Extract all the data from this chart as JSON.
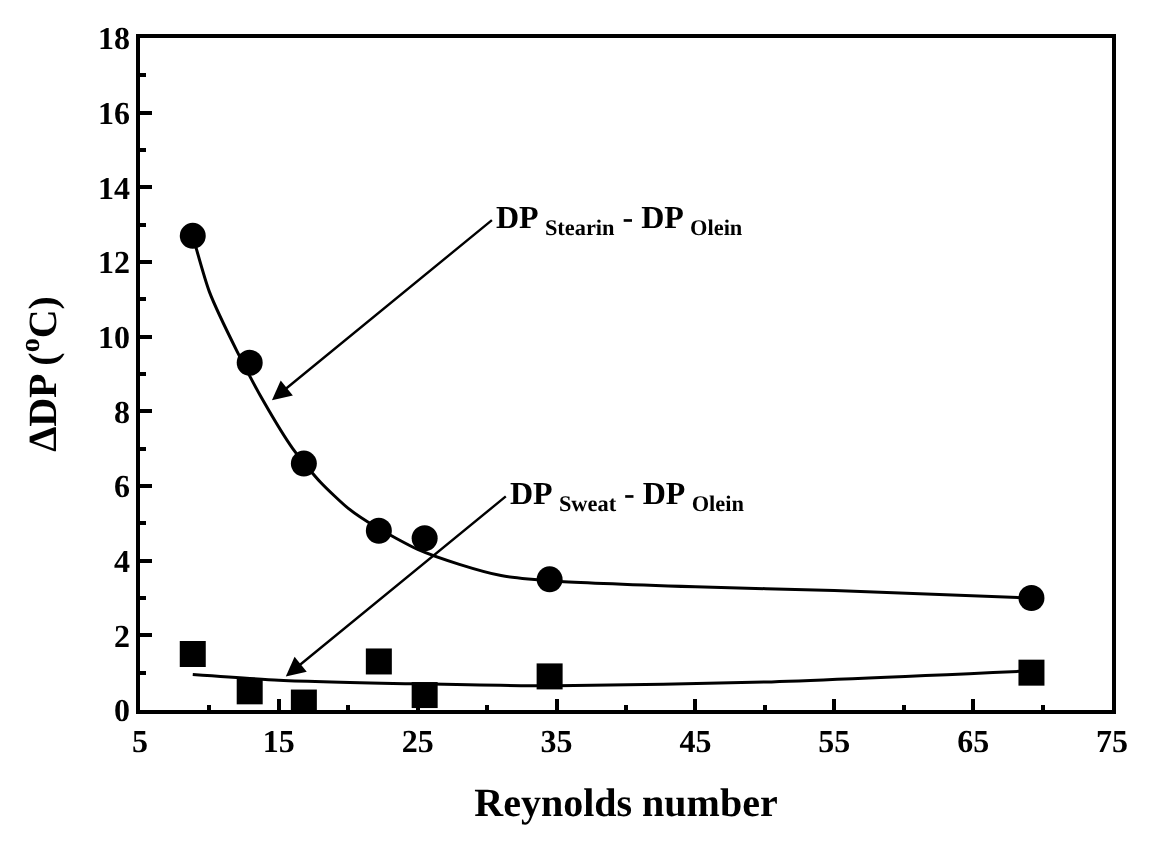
{
  "chart_data": {
    "type": "scatter",
    "xlabel": "Reynolds number",
    "ylabel": "ΔDP ($^{o}$C)",
    "xlim": [
      5,
      75
    ],
    "xticks": [
      5,
      15,
      25,
      35,
      45,
      55,
      65,
      75
    ],
    "ylim": [
      0,
      18
    ],
    "yticks": [
      0,
      2,
      4,
      6,
      8,
      10,
      12,
      14,
      16,
      18
    ],
    "series": [
      {
        "marker": "circle",
        "color": "#000000",
        "x": [
          8.8,
          12.9,
          16.8,
          22.2,
          25.5,
          34.5,
          69.2
        ],
        "values": [
          12.7,
          9.3,
          6.6,
          4.8,
          4.6,
          3.5,
          3.0
        ]
      },
      {
        "marker": "square",
        "color": "#000000",
        "x": [
          8.8,
          12.9,
          16.8,
          22.2,
          25.5,
          34.5,
          69.2
        ],
        "values": [
          1.5,
          0.5,
          0.2,
          1.3,
          0.4,
          0.9,
          1.0
        ]
      },
      {
        "type": "line",
        "marker": "none",
        "line_style": "solid",
        "color": "#000000",
        "x": [
          8.8,
          10,
          12,
          14,
          16,
          18,
          20,
          22,
          25,
          28,
          31,
          35,
          45,
          55,
          69.2
        ],
        "values": [
          12.7,
          11.2,
          9.6,
          8.2,
          7.0,
          6.1,
          5.4,
          4.9,
          4.3,
          3.9,
          3.6,
          3.45,
          3.3,
          3.2,
          3.0
        ]
      },
      {
        "type": "line",
        "marker": "none",
        "line_style": "solid",
        "color": "#000000",
        "x": [
          8.8,
          15,
          25,
          35,
          50,
          69.2
        ],
        "values": [
          0.95,
          0.8,
          0.7,
          0.65,
          0.75,
          1.05
        ]
      }
    ],
    "annotations": [
      {
        "text": "DP $_{Stearin}$ - DP $_{Olein}$",
        "x": 14.5,
        "y": 8.3
      },
      {
        "text": "DP $_{Sweat}$ - DP $_{Olein}$",
        "x": 15.5,
        "y": 0.9
      }
    ]
  }
}
